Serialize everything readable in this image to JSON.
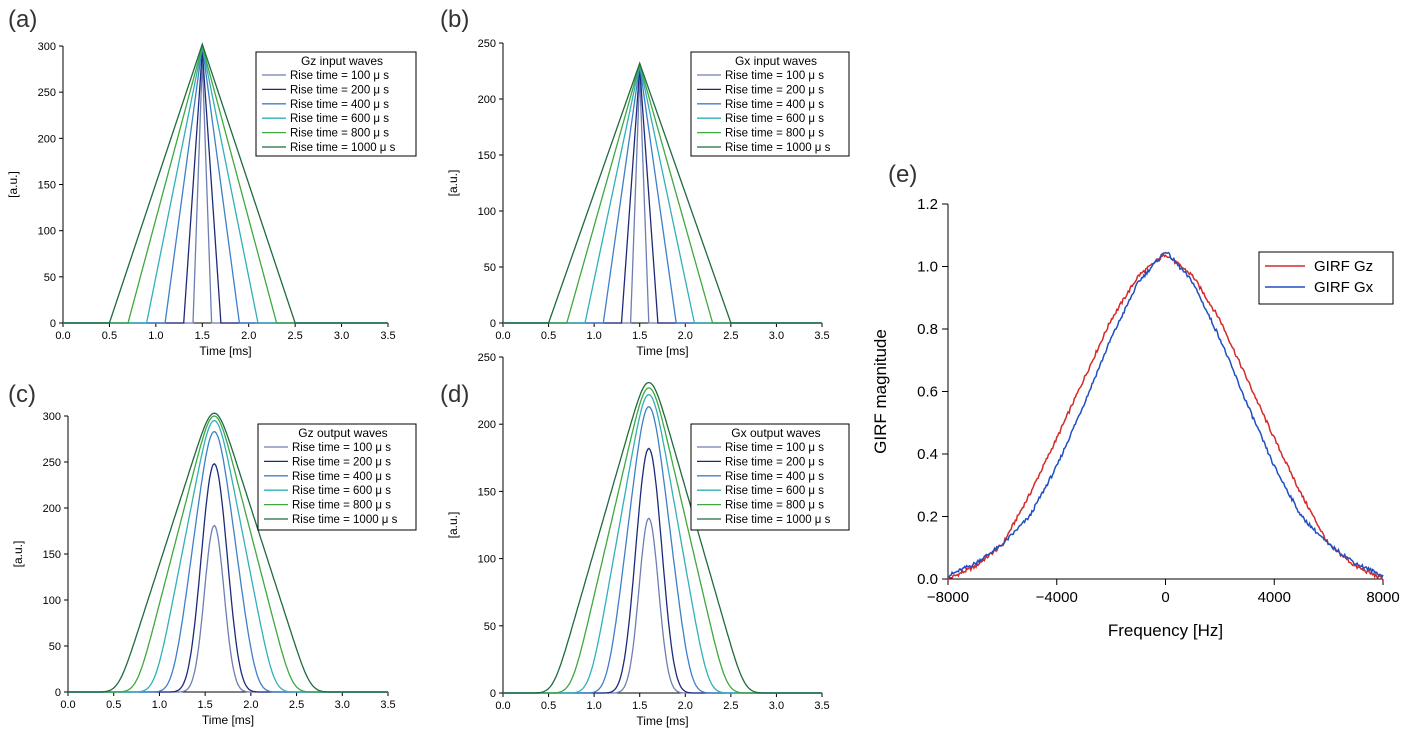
{
  "chart_data": [
    {
      "id": "a",
      "type": "line",
      "panel_label": "(a)",
      "title": "Gz input waves",
      "xlabel": "Time [ms]",
      "ylabel": "[a.u.]",
      "xlim": [
        0,
        3.5
      ],
      "ylim": [
        0,
        300
      ],
      "xticks": [
        0,
        0.5,
        1,
        1.5,
        2,
        2.5,
        3,
        3.5
      ],
      "xtick_labels": [
        "0.0",
        "0.5",
        "1.0",
        "1.5",
        "2.0",
        "2.5",
        "3.0",
        "3.5"
      ],
      "yticks": [
        0,
        50,
        100,
        150,
        200,
        250,
        300
      ],
      "ytick_labels": [
        "0",
        "50",
        "100",
        "150",
        "200",
        "250",
        "300"
      ],
      "shape": "triangle",
      "center": 1.5,
      "series": [
        {
          "name": "Rise time = 100 μ s",
          "rise_ms": 0.1,
          "peak": 285,
          "color": "#6d7fb2"
        },
        {
          "name": "Rise time = 200 μ s",
          "rise_ms": 0.2,
          "peak": 295,
          "color": "#1d2a7a"
        },
        {
          "name": "Rise time = 400 μ s",
          "rise_ms": 0.4,
          "peak": 300,
          "color": "#3f7fc8"
        },
        {
          "name": "Rise time = 600 μ s",
          "rise_ms": 0.6,
          "peak": 300,
          "color": "#30b0b8"
        },
        {
          "name": "Rise time = 800 μ s",
          "rise_ms": 0.8,
          "peak": 300,
          "color": "#3fa83f"
        },
        {
          "name": "Rise time = 1000 μ s",
          "rise_ms": 1.0,
          "peak": 302,
          "color": "#1f6a3e"
        }
      ]
    },
    {
      "id": "b",
      "type": "line",
      "panel_label": "(b)",
      "title": "Gx input waves",
      "xlabel": "Time [ms]",
      "ylabel": "[a.u.]",
      "xlim": [
        0,
        3.5
      ],
      "ylim": [
        0,
        250
      ],
      "xticks": [
        0,
        0.5,
        1,
        1.5,
        2,
        2.5,
        3,
        3.5
      ],
      "xtick_labels": [
        "0.0",
        "0.5",
        "1.0",
        "1.5",
        "2.0",
        "2.5",
        "3.0",
        "3.5"
      ],
      "yticks": [
        0,
        50,
        100,
        150,
        200,
        250
      ],
      "ytick_labels": [
        "0",
        "50",
        "100",
        "150",
        "200",
        "250"
      ],
      "shape": "triangle",
      "center": 1.5,
      "series": [
        {
          "name": "Rise time = 100 μ s",
          "rise_ms": 0.1,
          "peak": 222,
          "color": "#6d7fb2"
        },
        {
          "name": "Rise time = 200 μ s",
          "rise_ms": 0.2,
          "peak": 228,
          "color": "#1d2a7a"
        },
        {
          "name": "Rise time = 400 μ s",
          "rise_ms": 0.4,
          "peak": 230,
          "color": "#3f7fc8"
        },
        {
          "name": "Rise time = 600 μ s",
          "rise_ms": 0.6,
          "peak": 231,
          "color": "#30b0b8"
        },
        {
          "name": "Rise time = 800 μ s",
          "rise_ms": 0.8,
          "peak": 231,
          "color": "#3fa83f"
        },
        {
          "name": "Rise time = 1000 μ s",
          "rise_ms": 1.0,
          "peak": 232,
          "color": "#1f6a3e"
        }
      ]
    },
    {
      "id": "c",
      "type": "line",
      "panel_label": "(c)",
      "title": "Gz output waves",
      "xlabel": "Time [ms]",
      "ylabel": "[a.u.]",
      "xlim": [
        0,
        3.5
      ],
      "ylim": [
        0,
        300
      ],
      "xticks": [
        0,
        0.5,
        1,
        1.5,
        2,
        2.5,
        3,
        3.5
      ],
      "xtick_labels": [
        "0.0",
        "0.5",
        "1.0",
        "1.5",
        "2.0",
        "2.5",
        "3.0",
        "3.5"
      ],
      "yticks": [
        0,
        50,
        100,
        150,
        200,
        250,
        300
      ],
      "ytick_labels": [
        "0",
        "50",
        "100",
        "150",
        "200",
        "250",
        "300"
      ],
      "shape": "smoothed",
      "center": 1.6,
      "series": [
        {
          "name": "Rise time = 100 μ s",
          "rise_ms": 0.1,
          "peak": 181,
          "color": "#6d7fb2"
        },
        {
          "name": "Rise time = 200 μ s",
          "rise_ms": 0.2,
          "peak": 248,
          "color": "#1d2a7a"
        },
        {
          "name": "Rise time = 400 μ s",
          "rise_ms": 0.4,
          "peak": 283,
          "color": "#3f7fc8"
        },
        {
          "name": "Rise time = 600 μ s",
          "rise_ms": 0.6,
          "peak": 295,
          "color": "#30b0b8"
        },
        {
          "name": "Rise time = 800 μ s",
          "rise_ms": 0.8,
          "peak": 300,
          "color": "#3fa83f"
        },
        {
          "name": "Rise time = 1000 μ s",
          "rise_ms": 1.0,
          "peak": 303,
          "color": "#1f6a3e"
        }
      ]
    },
    {
      "id": "d",
      "type": "line",
      "panel_label": "(d)",
      "title": "Gx output waves",
      "xlabel": "Time [ms]",
      "ylabel": "[a.u.]",
      "xlim": [
        0,
        3.5
      ],
      "ylim": [
        0,
        250
      ],
      "xticks": [
        0,
        0.5,
        1,
        1.5,
        2,
        2.5,
        3,
        3.5
      ],
      "xtick_labels": [
        "0.0",
        "0.5",
        "1.0",
        "1.5",
        "2.0",
        "2.5",
        "3.0",
        "3.5"
      ],
      "yticks": [
        0,
        50,
        100,
        150,
        200,
        250
      ],
      "ytick_labels": [
        "0",
        "50",
        "100",
        "150",
        "200",
        "250"
      ],
      "shape": "smoothed",
      "center": 1.6,
      "series": [
        {
          "name": "Rise time = 100 μ s",
          "rise_ms": 0.1,
          "peak": 130,
          "color": "#6d7fb2"
        },
        {
          "name": "Rise time = 200 μ s",
          "rise_ms": 0.2,
          "peak": 182,
          "color": "#1d2a7a"
        },
        {
          "name": "Rise time = 400 μ s",
          "rise_ms": 0.4,
          "peak": 213,
          "color": "#3f7fc8"
        },
        {
          "name": "Rise time = 600 μ s",
          "rise_ms": 0.6,
          "peak": 222,
          "color": "#30b0b8"
        },
        {
          "name": "Rise time = 800 μ s",
          "rise_ms": 0.8,
          "peak": 227,
          "color": "#3fa83f"
        },
        {
          "name": "Rise time = 1000 μ s",
          "rise_ms": 1.0,
          "peak": 231,
          "color": "#1f6a3e"
        }
      ]
    },
    {
      "id": "e",
      "type": "line",
      "panel_label": "(e)",
      "title": "",
      "xlabel": "Frequency [Hz]",
      "ylabel": "GIRF magnitude",
      "xlim": [
        -8000,
        8000
      ],
      "ylim": [
        0,
        1.2
      ],
      "xticks": [
        -8000,
        -4000,
        0,
        4000,
        8000
      ],
      "xtick_labels": [
        "−8000",
        "−4000",
        "0",
        "4000",
        "8000"
      ],
      "yticks": [
        0,
        0.2,
        0.4,
        0.6,
        0.8,
        1.0,
        1.2
      ],
      "ytick_labels": [
        "0.0",
        "0.2",
        "0.4",
        "0.6",
        "0.8",
        "1.0",
        "1.2"
      ],
      "series": [
        {
          "name": "GIRF Gz",
          "color": "#d42a2a",
          "x": [
            -8000,
            -7000,
            -6000,
            -5000,
            -4000,
            -3000,
            -2000,
            -1000,
            0,
            1000,
            2000,
            3000,
            4000,
            5000,
            6000,
            7000,
            8000
          ],
          "y": [
            0.0,
            0.04,
            0.11,
            0.27,
            0.45,
            0.64,
            0.83,
            0.97,
            1.04,
            0.97,
            0.83,
            0.64,
            0.45,
            0.27,
            0.11,
            0.04,
            0.0
          ]
        },
        {
          "name": "GIRF Gx",
          "color": "#1f4fc2",
          "x": [
            -8000,
            -7000,
            -6000,
            -5000,
            -4000,
            -3000,
            -2000,
            -1000,
            0,
            1000,
            2000,
            3000,
            4000,
            5000,
            6000,
            7000,
            8000
          ],
          "y": [
            0.01,
            0.05,
            0.11,
            0.2,
            0.36,
            0.56,
            0.77,
            0.95,
            1.05,
            0.95,
            0.77,
            0.56,
            0.36,
            0.2,
            0.11,
            0.05,
            0.01
          ]
        }
      ]
    }
  ]
}
